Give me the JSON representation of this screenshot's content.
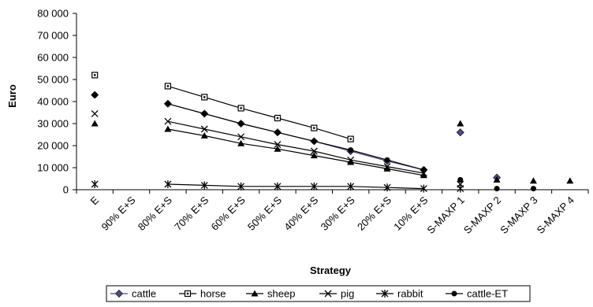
{
  "chart_data": {
    "type": "line",
    "xlabel": "Strategy",
    "ylabel": "Euro",
    "ylim": [
      0,
      80000
    ],
    "yticks": [
      0,
      10000,
      20000,
      30000,
      40000,
      50000,
      60000,
      70000,
      80000
    ],
    "ytick_labels": [
      "0",
      "10 000",
      "20 000",
      "30 000",
      "40 000",
      "50 000",
      "60 000",
      "70 000",
      "80 000"
    ],
    "categories": [
      "E",
      "90% E+S",
      "80% E+S",
      "70% E+S",
      "60% E+S",
      "50% E+S",
      "40% E+S",
      "30% E+S",
      "20% E+S",
      "10% E+S",
      "S-MAXP 1",
      "S-MAXP 2",
      "S-MAXP 3",
      "S-MAXP 4"
    ],
    "legend_position": "bottom",
    "series": [
      {
        "name": "cattle",
        "marker": "diamond",
        "values": [
          43000,
          null,
          39000,
          34500,
          30000,
          26000,
          22000,
          17500,
          13000,
          9000,
          26000,
          5500,
          null,
          null
        ]
      },
      {
        "name": "horse",
        "marker": "square",
        "values": [
          52000,
          null,
          47000,
          42000,
          37000,
          32500,
          28000,
          23000,
          null,
          null,
          null,
          null,
          null,
          null
        ]
      },
      {
        "name": "sheep",
        "marker": "triangle",
        "values": [
          30000,
          null,
          27500,
          24500,
          21000,
          18500,
          15500,
          12500,
          9500,
          6500,
          30000,
          4500,
          4000,
          4000
        ]
      },
      {
        "name": "pig",
        "marker": "x",
        "values": [
          34500,
          null,
          31000,
          27500,
          24000,
          20500,
          17500,
          13500,
          10500,
          7500,
          2500,
          null,
          null,
          null
        ]
      },
      {
        "name": "rabbit",
        "marker": "star",
        "values": [
          2500,
          null,
          2500,
          2000,
          1500,
          1500,
          1500,
          1500,
          1000,
          500,
          500,
          null,
          null,
          null
        ]
      },
      {
        "name": "cattle-ET",
        "marker": "circle",
        "values": [
          43000,
          null,
          39000,
          34500,
          30000,
          26000,
          22000,
          18000,
          13500,
          9000,
          4500,
          500,
          500,
          null
        ]
      }
    ],
    "colors": {
      "cattle": "#4a4a8c",
      "default": "#000000"
    }
  }
}
